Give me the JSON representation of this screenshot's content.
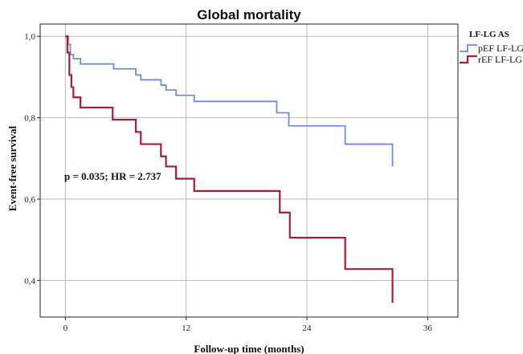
{
  "chart_data": {
    "type": "line",
    "title": "Global mortality",
    "xlabel": "Follow-up time (months)",
    "ylabel": "Event-free survival",
    "xlim": [
      -2.5,
      39
    ],
    "ylim": [
      0.31,
      1.03
    ],
    "xticks": [
      0,
      12,
      24,
      36
    ],
    "xtick_labels": [
      "0",
      "12",
      "24",
      "36"
    ],
    "yticks": [
      0.4,
      0.6,
      0.8,
      1.0
    ],
    "ytick_labels": [
      "0,4",
      "0,6",
      "0,8",
      "1,0"
    ],
    "grid": true,
    "legend_title": "LF-LG AS",
    "legend_position": "top-right",
    "annotation": "p = 0.035; HR = 2.737",
    "series": [
      {
        "name": "pEF LF-LG",
        "color": "#6b8fdc",
        "x": [
          0,
          0.3,
          0.5,
          0.8,
          1.5,
          4.8,
          7.0,
          7.5,
          9.5,
          10.0,
          11.0,
          12.8,
          21.0,
          22.2,
          27.8,
          32.5
        ],
        "y": [
          1.0,
          0.98,
          0.955,
          0.945,
          0.932,
          0.92,
          0.905,
          0.893,
          0.88,
          0.868,
          0.855,
          0.84,
          0.812,
          0.78,
          0.735,
          0.68
        ]
      },
      {
        "name": "rEF LF-LG",
        "color": "#a51d3b",
        "x": [
          0,
          0.2,
          0.4,
          0.6,
          0.8,
          1.5,
          4.7,
          7.0,
          7.5,
          9.5,
          10.0,
          11.0,
          12.8,
          21.3,
          22.3,
          27.8,
          32.5
        ],
        "y": [
          1.0,
          0.96,
          0.905,
          0.875,
          0.85,
          0.825,
          0.795,
          0.765,
          0.735,
          0.705,
          0.68,
          0.65,
          0.62,
          0.567,
          0.505,
          0.428,
          0.345
        ]
      }
    ]
  }
}
